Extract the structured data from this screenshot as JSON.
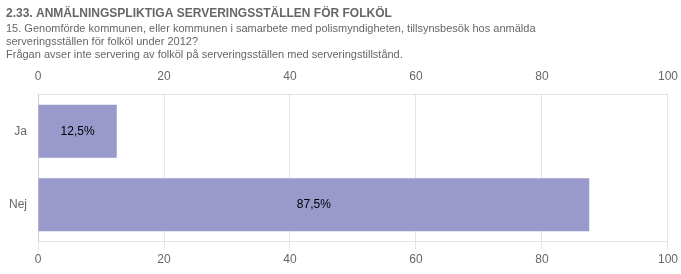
{
  "chart_data": {
    "type": "bar",
    "orientation": "horizontal",
    "title": "2.33. ANMÄLNINGSPLIKTIGA SERVERINGSSTÄLLEN FÖR FOLKÖL",
    "subtitle": [
      "15. Genomförde kommunen, eller kommunen i samarbete med polismyndigheten, tillsynsbesök hos anmälda",
      "serveringsställen för folköl under 2012?",
      "Frågan avser inte servering av folköl på serveringsställen med serveringstillstånd."
    ],
    "categories": [
      "Nej",
      "Ja"
    ],
    "values": [
      87.5,
      12.5
    ],
    "value_labels": [
      "87,5%",
      "12,5%"
    ],
    "data_labels": true,
    "color": "#9999cc",
    "xlim": [
      0,
      100
    ],
    "xticks": [
      0,
      20,
      40,
      60,
      80,
      100
    ],
    "grid": true
  }
}
